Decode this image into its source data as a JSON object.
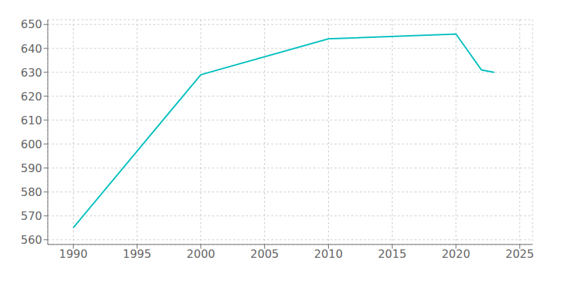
{
  "chart_data": {
    "type": "line",
    "x": [
      1990,
      2000,
      2010,
      2020,
      2022,
      2023
    ],
    "values": [
      565,
      629,
      644,
      646,
      631,
      630
    ],
    "color": "#00BFBF",
    "xlim": [
      1988,
      2026
    ],
    "ylim": [
      558,
      652
    ],
    "xticks": [
      1990,
      1995,
      2000,
      2005,
      2010,
      2015,
      2020,
      2025
    ],
    "yticks": [
      560,
      570,
      580,
      590,
      600,
      610,
      620,
      630,
      640,
      650
    ],
    "grid": true
  }
}
